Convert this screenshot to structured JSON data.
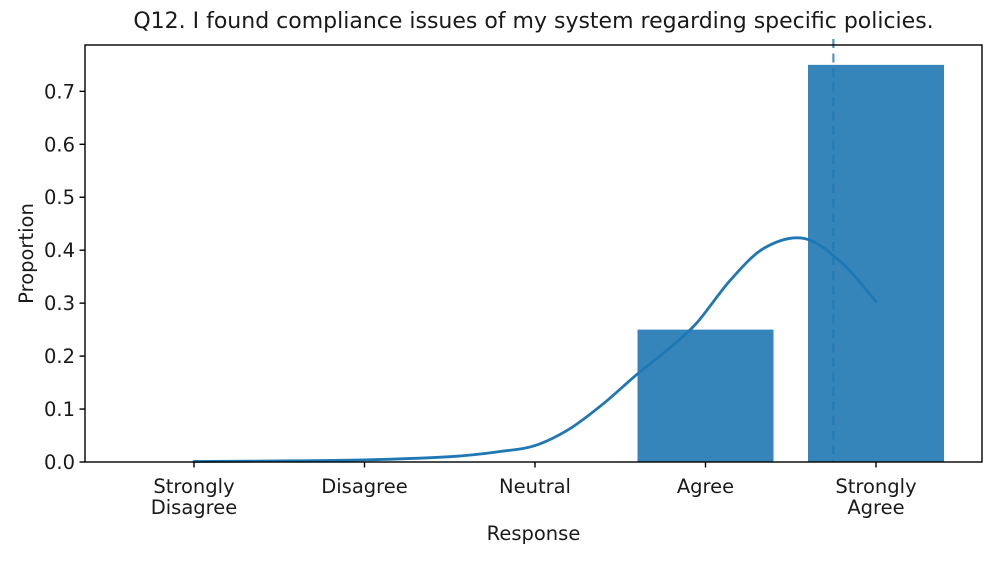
{
  "chart_data": {
    "type": "bar",
    "subtype": "histogram-proportion-with-kde",
    "title": "Q12. I found compliance issues of my system regarding specific policies.",
    "xlabel": "Response",
    "ylabel": "Proportion",
    "categories": [
      "Strongly Disagree",
      "Disagree",
      "Neutral",
      "Agree",
      "Strongly Agree"
    ],
    "category_label_lines": [
      [
        "Strongly",
        "Disagree"
      ],
      [
        "Disagree"
      ],
      [
        "Neutral"
      ],
      [
        "Agree"
      ],
      [
        "Strongly",
        "Agree"
      ]
    ],
    "values": [
      0.0,
      0.0,
      0.0,
      0.25,
      0.75
    ],
    "ytick_labels": [
      "0.0",
      "0.1",
      "0.2",
      "0.3",
      "0.4",
      "0.5",
      "0.6",
      "0.7"
    ],
    "ytick_values": [
      0.0,
      0.1,
      0.2,
      0.3,
      0.4,
      0.5,
      0.6,
      0.7
    ],
    "ylim": [
      0,
      0.7875
    ],
    "xlim_categories": [
      1,
      5
    ],
    "grid": false,
    "legend": null,
    "mean_line_x": 4.75,
    "mean_line_style": "dashed",
    "kde_curve": {
      "x": [
        1.0,
        1.5,
        2.0,
        2.5,
        2.8,
        3.0,
        3.2,
        3.4,
        3.6,
        3.8,
        3.95,
        4.15,
        4.35,
        4.58,
        4.8,
        5.0
      ],
      "y": [
        0.001,
        0.002,
        0.004,
        0.01,
        0.02,
        0.031,
        0.062,
        0.11,
        0.166,
        0.218,
        0.263,
        0.345,
        0.405,
        0.422,
        0.376,
        0.303
      ],
      "peak": {
        "x": 4.58,
        "y": 0.42
      }
    },
    "colors": {
      "bar": "#3585bb",
      "kde_line": "#1f77b4",
      "mean_line": "#1f77b4",
      "spine": "#000000",
      "text": "#1a1a1a"
    }
  }
}
